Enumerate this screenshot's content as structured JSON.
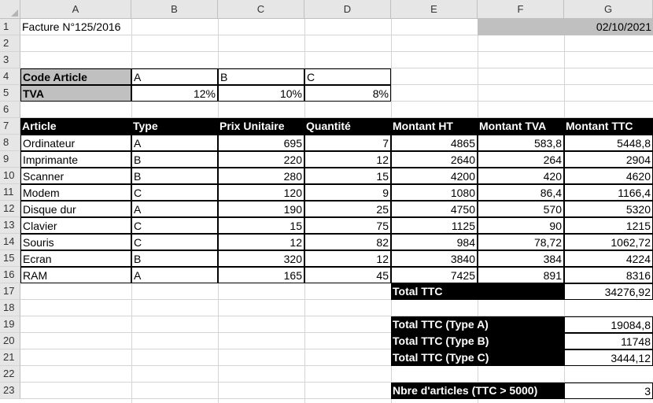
{
  "columns": [
    "A",
    "B",
    "C",
    "D",
    "E",
    "F",
    "G"
  ],
  "rows": [
    "1",
    "2",
    "3",
    "4",
    "5",
    "6",
    "7",
    "8",
    "9",
    "10",
    "11",
    "12",
    "13",
    "14",
    "15",
    "16",
    "17",
    "18",
    "19",
    "20",
    "21",
    "22",
    "23"
  ],
  "invoice": {
    "title": "Facture N°125/2016",
    "date": "02/10/2021"
  },
  "vat_table": {
    "code_label": "Code Article",
    "vat_label": "TVA",
    "codes": [
      "A",
      "B",
      "C"
    ],
    "rates": [
      "12%",
      "10%",
      "8%"
    ]
  },
  "items_table": {
    "headers": [
      "Article",
      "Type",
      "Prix Unitaire",
      "Quantité",
      "Montant HT",
      "Montant TVA",
      "Montant TTC"
    ],
    "rows": [
      [
        "Ordinateur",
        "A",
        "695",
        "7",
        "4865",
        "583,8",
        "5448,8"
      ],
      [
        "Imprimante",
        "B",
        "220",
        "12",
        "2640",
        "264",
        "2904"
      ],
      [
        "Scanner",
        "B",
        "280",
        "15",
        "4200",
        "420",
        "4620"
      ],
      [
        "Modem",
        "C",
        "120",
        "9",
        "1080",
        "86,4",
        "1166,4"
      ],
      [
        "Disque dur",
        "A",
        "190",
        "25",
        "4750",
        "570",
        "5320"
      ],
      [
        "Clavier",
        "C",
        "15",
        "75",
        "1125",
        "90",
        "1215"
      ],
      [
        "Souris",
        "C",
        "12",
        "82",
        "984",
        "78,72",
        "1062,72"
      ],
      [
        "Ecran",
        "B",
        "320",
        "12",
        "3840",
        "384",
        "4224"
      ],
      [
        "RAM",
        "A",
        "165",
        "45",
        "7425",
        "891",
        "8316"
      ]
    ]
  },
  "totals": {
    "total_ttc_label": "Total TTC",
    "total_ttc_value": "34276,92",
    "type_a_label": "Total TTC (Type A)",
    "type_a_value": "19084,8",
    "type_b_label": "Total TTC (Type B)",
    "type_b_value": "11748",
    "type_c_label": "Total TTC (Type C)",
    "type_c_value": "3444,12",
    "count_label": "Nbre d'articles (TTC > 5000)",
    "count_value": "3"
  }
}
